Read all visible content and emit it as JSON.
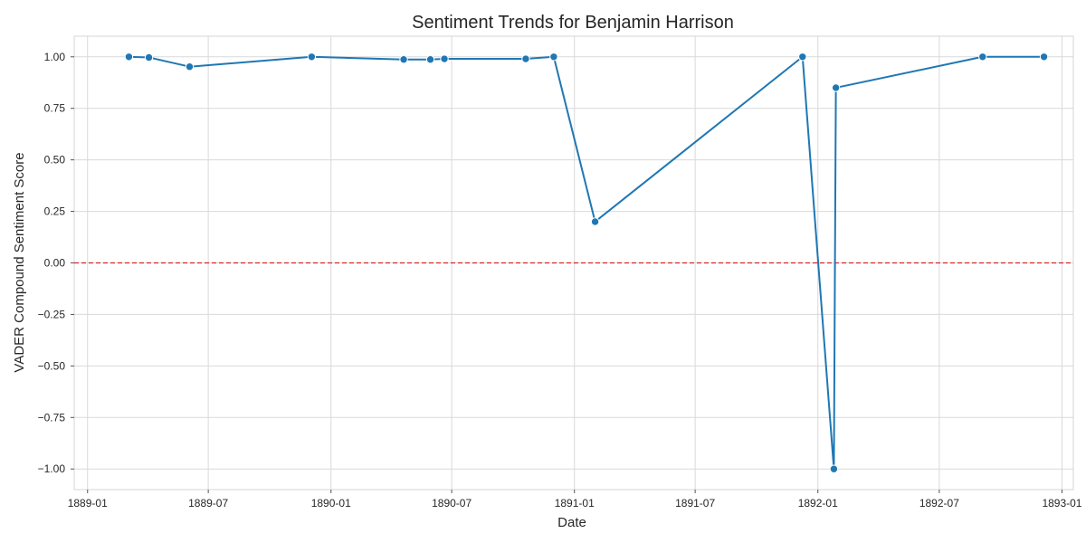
{
  "chart_data": {
    "type": "line",
    "title": "Sentiment Trends for Benjamin Harrison",
    "xlabel": "Date",
    "ylabel": "VADER Compound Sentiment Score",
    "xlim": [
      "1888-12-12",
      "1893-01-18"
    ],
    "ylim": [
      -1.1,
      1.1
    ],
    "x_ticks": [
      "1889-01",
      "1889-07",
      "1890-01",
      "1890-07",
      "1891-01",
      "1891-07",
      "1892-01",
      "1892-07",
      "1893-01"
    ],
    "y_ticks": [
      -1.0,
      -0.75,
      -0.5,
      -0.25,
      0.0,
      0.25,
      0.5,
      0.75,
      1.0
    ],
    "y_tick_labels": [
      "−1.00",
      "−0.75",
      "−0.50",
      "−0.25",
      "0.00",
      "0.25",
      "0.50",
      "0.75",
      "1.00"
    ],
    "grid": true,
    "reference_line": {
      "y": 0.0,
      "color": "#d62728",
      "style": "dashed"
    },
    "series": [
      {
        "color": "#1f77b4",
        "x": [
          "1889-03-04",
          "1889-04-03",
          "1889-06-03",
          "1889-12-03",
          "1890-04-20",
          "1890-05-30",
          "1890-06-20",
          "1890-10-20",
          "1890-12-01",
          "1891-02-01",
          "1891-12-09",
          "1892-01-25",
          "1892-01-28",
          "1892-09-04",
          "1892-12-05"
        ],
        "y": [
          1.0,
          0.997,
          0.952,
          1.0,
          0.987,
          0.987,
          0.99,
          0.99,
          1.0,
          0.2,
          1.0,
          -1.0,
          0.85,
          1.0,
          1.0
        ]
      }
    ]
  }
}
